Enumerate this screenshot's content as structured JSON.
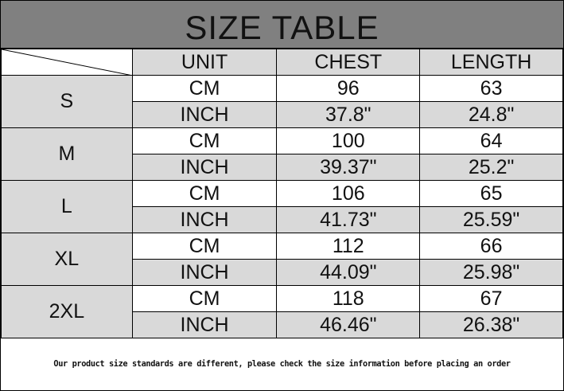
{
  "title": "SIZE TABLE",
  "headers": [
    "UNIT",
    "CHEST",
    "LENGTH"
  ],
  "sizes": [
    {
      "size": "S",
      "rows": [
        [
          "CM",
          "96",
          "63"
        ],
        [
          "INCH",
          "37.8\"",
          "24.8\""
        ]
      ]
    },
    {
      "size": "M",
      "rows": [
        [
          "CM",
          "100",
          "64"
        ],
        [
          "INCH",
          "39.37\"",
          "25.2\""
        ]
      ]
    },
    {
      "size": "L",
      "rows": [
        [
          "CM",
          "106",
          "65"
        ],
        [
          "INCH",
          "41.73\"",
          "25.59\""
        ]
      ]
    },
    {
      "size": "XL",
      "rows": [
        [
          "CM",
          "112",
          "66"
        ],
        [
          "INCH",
          "44.09\"",
          "25.98\""
        ]
      ]
    },
    {
      "size": "2XL",
      "rows": [
        [
          "CM",
          "118",
          "67"
        ],
        [
          "INCH",
          "46.46\"",
          "26.38\""
        ]
      ]
    }
  ],
  "note": "Our product size standards are different, please check the size information before placing an order",
  "colors": {
    "title_bg": "#808080",
    "cell_gray": "#d9d9d9",
    "cell_white": "#ffffff"
  }
}
